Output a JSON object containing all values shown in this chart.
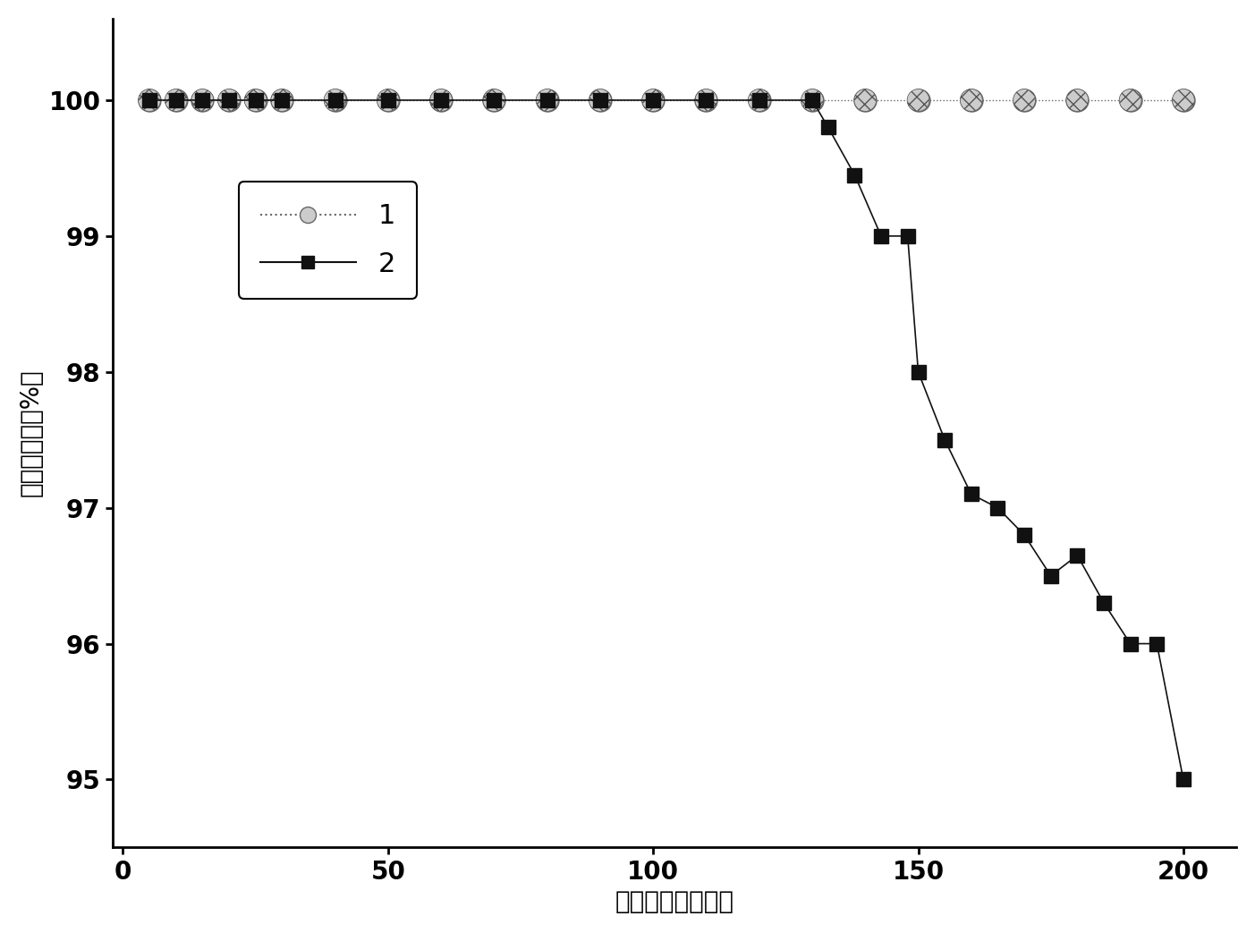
{
  "series1_x": [
    5,
    10,
    15,
    20,
    25,
    30,
    40,
    50,
    60,
    70,
    80,
    90,
    100,
    110,
    120,
    130,
    140,
    150,
    160,
    170,
    180,
    190,
    200
  ],
  "series1_y": [
    100,
    100,
    100,
    100,
    100,
    100,
    100,
    100,
    100,
    100,
    100,
    100,
    100,
    100,
    100,
    100,
    100,
    100,
    100,
    100,
    100,
    100,
    100
  ],
  "series2_x": [
    5,
    10,
    15,
    20,
    25,
    30,
    40,
    50,
    60,
    70,
    80,
    90,
    100,
    110,
    120,
    130,
    133,
    138,
    143,
    148,
    150,
    155,
    160,
    165,
    170,
    175,
    180,
    185,
    190,
    195,
    200
  ],
  "series2_y": [
    100,
    100,
    100,
    100,
    100,
    100,
    100,
    100,
    100,
    100,
    100,
    100,
    100,
    100,
    100,
    100,
    99.8,
    99.45,
    99.0,
    99.0,
    98.0,
    97.5,
    97.1,
    97.0,
    96.8,
    96.5,
    96.65,
    96.3,
    96.0,
    96.0,
    95.0
  ],
  "xlim": [
    -2,
    210
  ],
  "ylim": [
    94.5,
    100.6
  ],
  "xticks": [
    0,
    50,
    100,
    150,
    200
  ],
  "yticks": [
    95,
    96,
    97,
    98,
    99,
    100
  ],
  "xlabel": "反应时间（小时）",
  "ylabel": "乙醇转化率（%）",
  "legend1_label": "1",
  "legend2_label": "2",
  "line1_color": "#666666",
  "line2_color": "#111111",
  "marker2_color": "#111111",
  "bg_color": "#ffffff",
  "xlabel_fontsize": 20,
  "ylabel_fontsize": 20,
  "tick_fontsize": 20,
  "legend_fontsize": 22
}
